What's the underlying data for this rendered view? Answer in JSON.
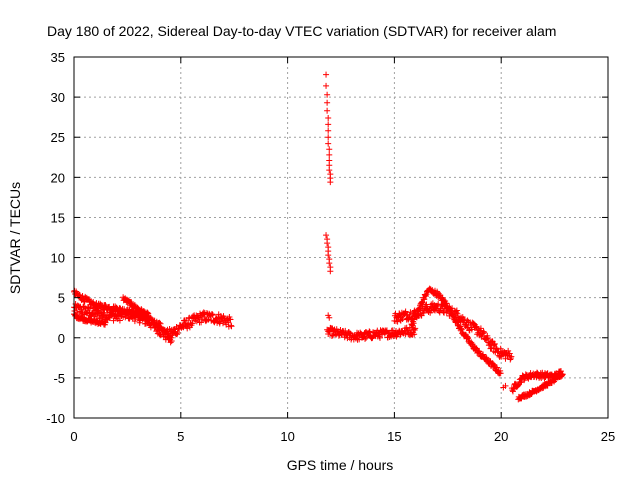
{
  "chart_data": {
    "type": "scatter",
    "title": "Day 180 of 2022, Sidereal Day-to-day VTEC variation (SDTVAR) for receiver alam",
    "xlabel": "GPS time / hours",
    "ylabel": "SDTVAR / TECUs",
    "xlim": [
      0,
      25
    ],
    "ylim": [
      -10,
      35
    ],
    "xticks": [
      0,
      5,
      10,
      15,
      20,
      25
    ],
    "yticks": [
      -10,
      -5,
      0,
      5,
      10,
      15,
      20,
      25,
      30,
      35
    ],
    "grid": true,
    "marker": "+",
    "series": [
      {
        "name": "SDTVAR",
        "color": "#ff0000",
        "bands": [
          {
            "x": [
              0.0,
              0.5,
              1.0,
              1.5,
              2.0,
              2.5,
              3.0,
              3.5,
              4.0,
              4.3,
              4.6,
              5.0,
              5.5,
              6.0,
              6.5,
              7.0,
              7.4
            ],
            "y": [
              3.6,
              3.4,
              3.0,
              2.9,
              2.7,
              3.0,
              2.6,
              2.0,
              1.0,
              0.3,
              0.6,
              1.4,
              2.0,
              2.6,
              2.5,
              2.3,
              1.8
            ],
            "spread": 1.3
          },
          {
            "x": [
              0.0,
              1.0,
              2.0,
              3.0,
              4.0,
              4.6
            ],
            "y": [
              5.6,
              4.0,
              3.6,
              2.9,
              1.6,
              -0.5
            ],
            "spread": 0.7
          },
          {
            "x": [
              0.0,
              0.5,
              1.0,
              1.5
            ],
            "y": [
              2.8,
              2.3,
              2.0,
              1.8
            ],
            "spread": 0.5
          },
          {
            "x": [
              2.3,
              3.0,
              3.5
            ],
            "y": [
              4.9,
              3.6,
              2.8
            ],
            "spread": 0.5
          },
          {
            "x": [
              11.9,
              12.5,
              13.0,
              13.5,
              14.0,
              14.5,
              15.0,
              15.5,
              16.0
            ],
            "y": [
              0.8,
              0.5,
              0.2,
              0.2,
              0.4,
              0.5,
              0.6,
              0.8,
              0.9
            ],
            "spread": 1.0
          },
          {
            "x": [
              15.0,
              15.5,
              16.0,
              16.5,
              17.0,
              17.5,
              18.0,
              18.5,
              19.0,
              19.5,
              20.0,
              20.5
            ],
            "y": [
              2.5,
              2.8,
              3.0,
              3.6,
              3.8,
              3.4,
              2.8,
              1.5,
              0.8,
              -0.8,
              -2.0,
              -2.2
            ],
            "spread": 1.2
          },
          {
            "x": [
              15.8,
              16.3,
              16.6,
              17.0,
              17.5,
              18.0,
              18.5,
              19.0,
              19.5,
              20.0
            ],
            "y": [
              1.5,
              4.5,
              6.0,
              5.5,
              4.0,
              1.5,
              -0.5,
              -2.0,
              -3.2,
              -4.5
            ],
            "spread": 0.6
          },
          {
            "x": [
              20.5,
              21.0,
              21.5,
              22.0,
              22.5,
              22.9
            ],
            "y": [
              -6.5,
              -5.0,
              -4.6,
              -4.7,
              -4.8,
              -4.2
            ],
            "spread": 0.7
          },
          {
            "x": [
              20.8,
              21.3,
              21.8,
              22.3,
              22.9
            ],
            "y": [
              -7.5,
              -7.0,
              -6.3,
              -5.6,
              -4.5
            ],
            "spread": 0.4
          }
        ],
        "points": [
          {
            "x": 11.8,
            "y": 32.8
          },
          {
            "x": 11.8,
            "y": 31.4
          },
          {
            "x": 11.85,
            "y": 30.3
          },
          {
            "x": 11.85,
            "y": 29.3
          },
          {
            "x": 11.85,
            "y": 28.3
          },
          {
            "x": 11.9,
            "y": 27.4
          },
          {
            "x": 11.9,
            "y": 26.6
          },
          {
            "x": 11.9,
            "y": 25.8
          },
          {
            "x": 11.9,
            "y": 25.0
          },
          {
            "x": 11.9,
            "y": 24.2
          },
          {
            "x": 11.95,
            "y": 23.5
          },
          {
            "x": 11.95,
            "y": 22.8
          },
          {
            "x": 11.95,
            "y": 22.1
          },
          {
            "x": 11.95,
            "y": 21.5
          },
          {
            "x": 11.95,
            "y": 20.9
          },
          {
            "x": 12.0,
            "y": 20.4
          },
          {
            "x": 12.0,
            "y": 19.9
          },
          {
            "x": 12.0,
            "y": 19.4
          },
          {
            "x": 11.8,
            "y": 12.8
          },
          {
            "x": 11.85,
            "y": 12.3
          },
          {
            "x": 11.85,
            "y": 11.8
          },
          {
            "x": 11.9,
            "y": 11.3
          },
          {
            "x": 11.9,
            "y": 10.8
          },
          {
            "x": 11.9,
            "y": 10.3
          },
          {
            "x": 11.95,
            "y": 9.8
          },
          {
            "x": 11.95,
            "y": 9.3
          },
          {
            "x": 12.0,
            "y": 8.8
          },
          {
            "x": 12.0,
            "y": 8.3
          },
          {
            "x": 11.9,
            "y": 2.8
          },
          {
            "x": 11.95,
            "y": 2.5
          },
          {
            "x": 11.85,
            "y": 1.0
          },
          {
            "x": 11.9,
            "y": 0.8
          },
          {
            "x": 20.1,
            "y": -6.2
          },
          {
            "x": 20.2,
            "y": -6.0
          }
        ]
      }
    ]
  }
}
